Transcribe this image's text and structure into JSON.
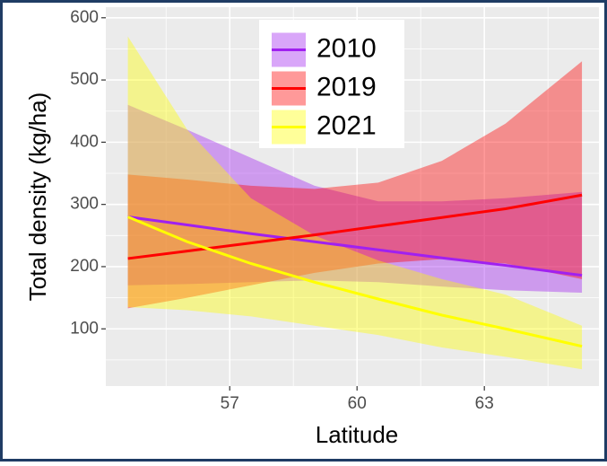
{
  "chart_data": {
    "type": "line",
    "x_label": "Latitude",
    "y_label": "Total density (kg/ha)",
    "x": [
      54.6,
      56,
      57.5,
      59,
      60.5,
      62,
      63.5,
      65.3
    ],
    "series": [
      {
        "name": "2010",
        "color": "#a020f0",
        "values": [
          280,
          267,
          253,
          240,
          227,
          214,
          202,
          186
        ],
        "lower": [
          170,
          172,
          175,
          178,
          175,
          168,
          162,
          158
        ],
        "upper": [
          460,
          420,
          375,
          330,
          305,
          305,
          310,
          320
        ]
      },
      {
        "name": "2019",
        "color": "#ff0000",
        "values": [
          213,
          225,
          238,
          251,
          265,
          279,
          293,
          315
        ],
        "lower": [
          133,
          150,
          170,
          190,
          205,
          212,
          205,
          180
        ],
        "upper": [
          348,
          340,
          330,
          325,
          335,
          370,
          430,
          530
        ]
      },
      {
        "name": "2021",
        "color": "#ffff00",
        "values": [
          280,
          240,
          205,
          175,
          148,
          122,
          100,
          72
        ],
        "lower": [
          135,
          130,
          120,
          105,
          90,
          70,
          55,
          35
        ],
        "upper": [
          570,
          420,
          310,
          250,
          210,
          180,
          155,
          105
        ]
      }
    ],
    "xlim": [
      54.08,
      65.7
    ],
    "ylim": [
      8,
      617
    ],
    "xticks": [
      57,
      60,
      63
    ],
    "yticks": [
      100,
      200,
      300,
      400,
      500,
      600
    ],
    "grid": true,
    "legend": "top"
  }
}
